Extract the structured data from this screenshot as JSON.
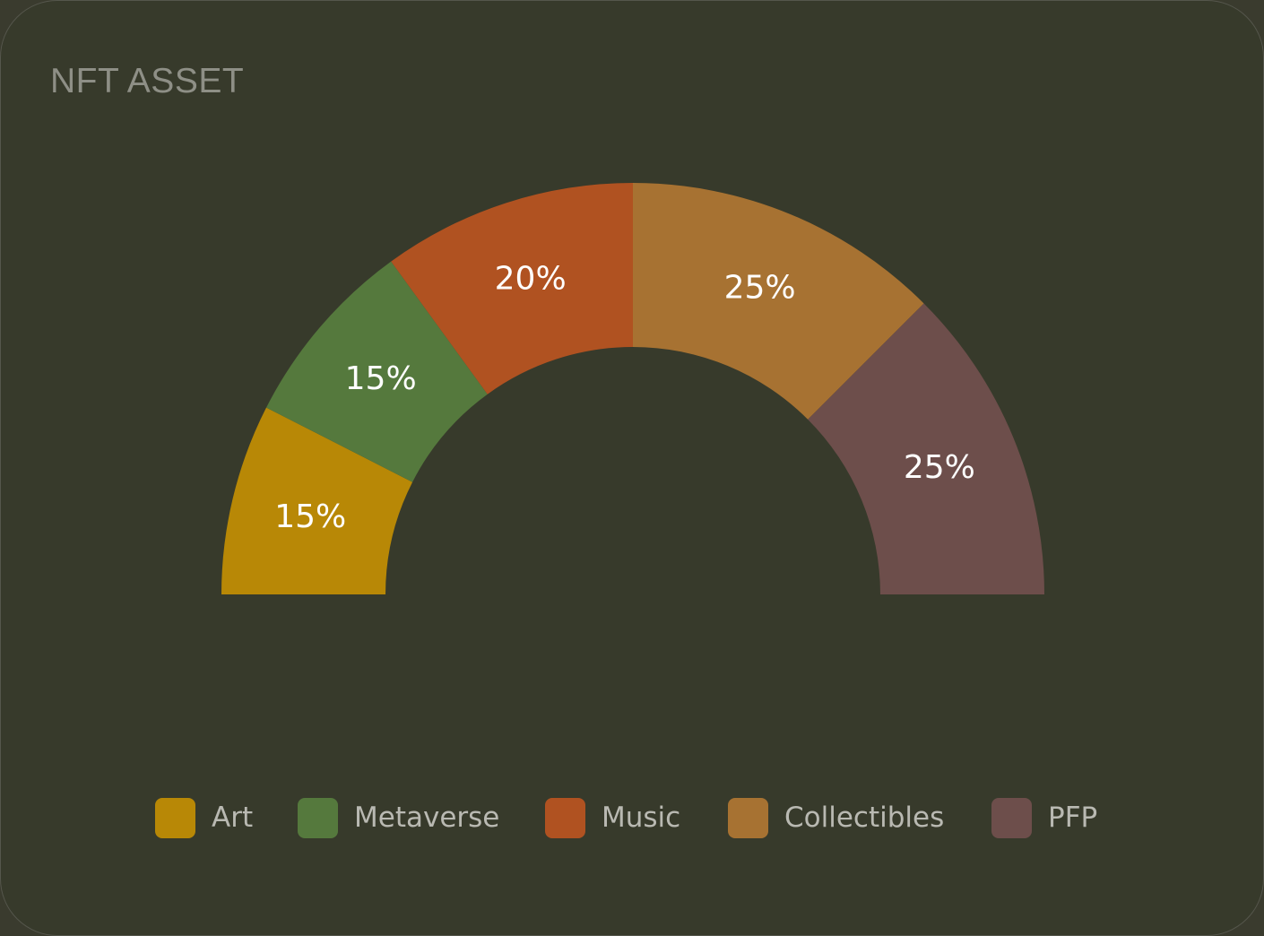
{
  "card": {
    "title": "NFT ASSET"
  },
  "colors": {
    "background": "#373a2b",
    "title": "#8e8f86",
    "label": "#ffffff",
    "legend_text": "#b9b9b2"
  },
  "chart_data": {
    "type": "pie",
    "variant": "half-donut",
    "title": "",
    "categories": [
      "Art",
      "Metaverse",
      "Music",
      "Collectibles",
      "PFP"
    ],
    "values": [
      15,
      15,
      20,
      25,
      25
    ],
    "value_labels": [
      "15%",
      "15%",
      "20%",
      "25%",
      "25%"
    ],
    "colors": [
      "#b88806",
      "#55793d",
      "#b05221",
      "#a77232",
      "#6d4e4b"
    ],
    "legend_position": "bottom-center"
  }
}
